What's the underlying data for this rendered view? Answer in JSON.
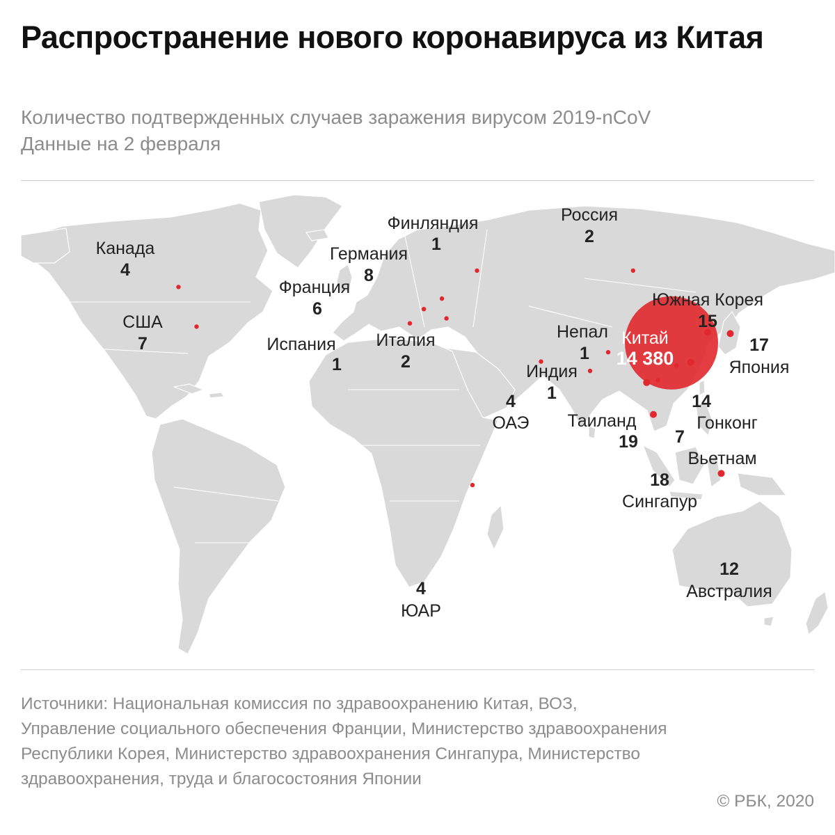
{
  "header": {
    "title": "Распространение нового коронавируса из Китая",
    "subtitle_line1": "Количество подтвержденных случаев заражения вирусом 2019-nCoV",
    "subtitle_line2": "Данные на 2 февраля"
  },
  "map_data": {
    "marker_color": "#e0282e",
    "land_color": "#d9d9d9",
    "locations": [
      {
        "name": "Китай",
        "count": "14 380",
        "lon": 112,
        "lat": 32
      },
      {
        "name": "Таиланд",
        "count": "19",
        "lon": 101,
        "lat": 15
      },
      {
        "name": "Сингапур",
        "count": "18",
        "lon": 104,
        "lat": 1.3
      },
      {
        "name": "Япония",
        "count": "17",
        "lon": 138,
        "lat": 36
      },
      {
        "name": "Южная Корея",
        "count": "15",
        "lon": 128,
        "lat": 36.5
      },
      {
        "name": "",
        "count": "14",
        "lon": 120.5,
        "lat": 23.7
      },
      {
        "name": "Австралия",
        "count": "12",
        "lon": 134,
        "lat": -24
      },
      {
        "name": "Германия",
        "count": "8",
        "lon": 10.5,
        "lat": 51
      },
      {
        "name": "США",
        "count": "7",
        "lon": -98,
        "lat": 39
      },
      {
        "name": "Гонконг",
        "count": "7",
        "lon": 114.2,
        "lat": 22.3
      },
      {
        "name": "Вьетнам",
        "count": "",
        "lon": 106,
        "lat": 16
      },
      {
        "name": "Франция",
        "count": "6",
        "lon": 2.5,
        "lat": 46.5
      },
      {
        "name": "Канада",
        "count": "4",
        "lon": -106,
        "lat": 56
      },
      {
        "name": "ОАЭ",
        "count": "4",
        "lon": 54.3,
        "lat": 24
      },
      {
        "name": "ЮАР",
        "count": "4",
        "lon": 24,
        "lat": -29
      },
      {
        "name": "Россия",
        "count": "2",
        "lon": 95,
        "lat": 63
      },
      {
        "name": "Италия",
        "count": "2",
        "lon": 12.5,
        "lat": 42.5
      },
      {
        "name": "Финляндия",
        "count": "1",
        "lon": 26,
        "lat": 63
      },
      {
        "name": "Испания",
        "count": "1",
        "lon": -3.7,
        "lat": 40.4
      },
      {
        "name": "Непал",
        "count": "1",
        "lon": 84,
        "lat": 28
      },
      {
        "name": "Индия",
        "count": "1",
        "lon": 76,
        "lat": 20
      }
    ]
  },
  "footer": {
    "sources": "Источники: Национальная комиссия по здравоохранению Китая, ВОЗ, Управление социального обеспечения Франции, Министерство здравоохранения Республики Корея, Министерство здравоохранения Сингапура, Министерство здравоохранения, труда и благосостояния Японии",
    "copyright": "© РБК, 2020"
  }
}
